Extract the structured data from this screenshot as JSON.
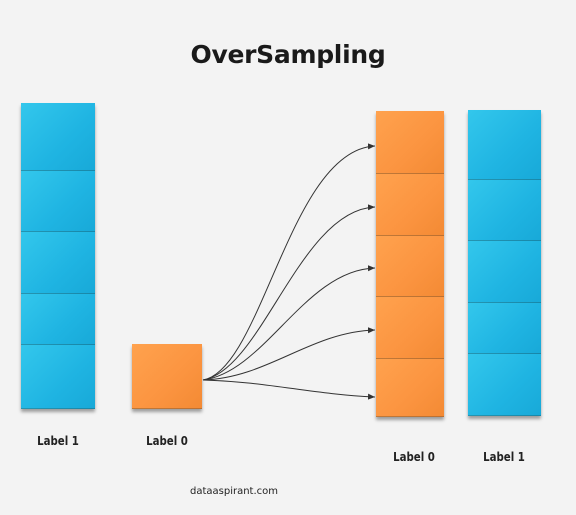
{
  "title": "OverSampling",
  "labels": {
    "left_blue": "Label 1",
    "single_orange": "Label 0",
    "right_orange": "Label 0",
    "right_blue": "Label 1"
  },
  "watermark": "dataaspirant.com",
  "stacks": {
    "left_blue_count": 5,
    "single_orange_count": 1,
    "right_orange_count": 5,
    "right_blue_count": 5
  },
  "arrow_count": 5,
  "colors": {
    "blue": "#22b7e4",
    "orange": "#fb9440",
    "arrow": "#333333"
  }
}
